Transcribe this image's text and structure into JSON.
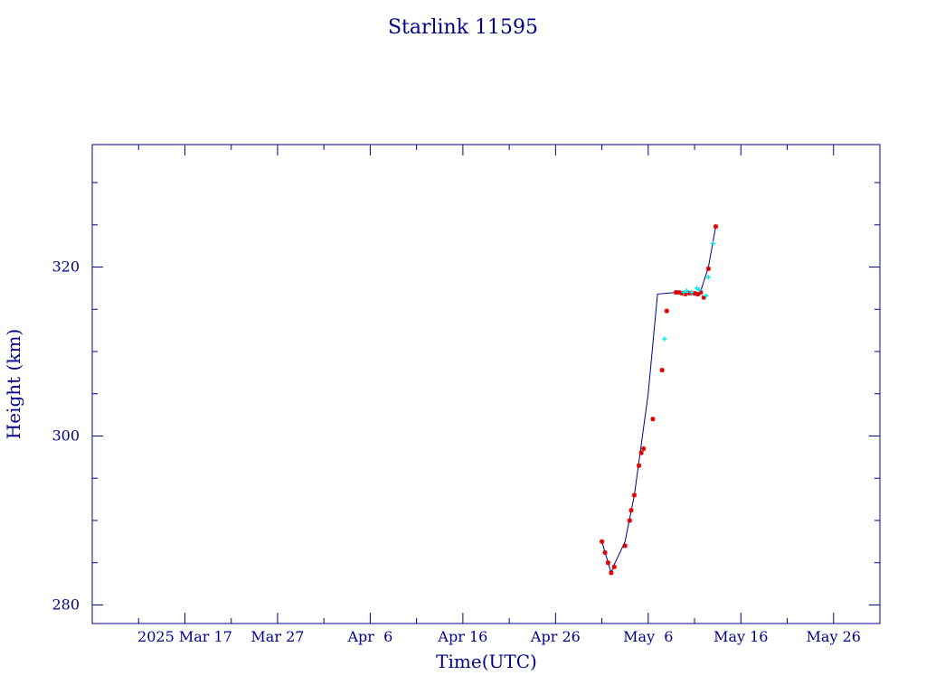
{
  "chart_data": {
    "type": "scatter",
    "title": "Starlink 11595",
    "xlabel": "Time(UTC)",
    "ylabel": "Height (km)",
    "x_axis_type": "date",
    "xlim": [
      "2025-03-07",
      "2025-05-31"
    ],
    "ylim": [
      277.8,
      334.5
    ],
    "x_major_ticks": [
      {
        "date": "2025-03-17",
        "label": "2025 Mar 17"
      },
      {
        "date": "2025-03-27",
        "label": "Mar 27"
      },
      {
        "date": "2025-04-06",
        "label": "Apr  6"
      },
      {
        "date": "2025-04-16",
        "label": "Apr 16"
      },
      {
        "date": "2025-04-26",
        "label": "Apr 26"
      },
      {
        "date": "2025-05-06",
        "label": "May  6"
      },
      {
        "date": "2025-05-16",
        "label": "May 16"
      },
      {
        "date": "2025-05-26",
        "label": "May 26"
      }
    ],
    "x_minor_ticks": [
      "2025-03-12",
      "2025-03-22",
      "2025-04-01",
      "2025-04-11",
      "2025-04-21",
      "2025-05-01",
      "2025-05-11",
      "2025-05-21"
    ],
    "y_major_ticks": [
      280,
      300,
      320
    ],
    "y_minor_ticks": [
      285,
      290,
      295,
      305,
      310,
      315,
      325,
      330
    ],
    "grid": false,
    "colors": {
      "axes": "#00008b",
      "line": "#00008b",
      "series_red": "#dd0000",
      "series_cyan": "#00e5ee"
    },
    "line": {
      "x": [
        "2025-05-01T00:00",
        "2025-05-02T00:00",
        "2025-05-02T08:00",
        "2025-05-03T12:00",
        "2025-05-04T12:00",
        "2025-05-06T00:00",
        "2025-05-07T00:00",
        "2025-05-09T00:00",
        "2025-05-10T12:00",
        "2025-05-11T12:00",
        "2025-05-12T12:00",
        "2025-05-13T07:00"
      ],
      "y": [
        287.5,
        283.8,
        284.8,
        287.5,
        293.0,
        305.0,
        316.8,
        317.0,
        316.8,
        316.6,
        320.0,
        324.8
      ]
    },
    "series": [
      {
        "marker": "*",
        "color": "#dd0000",
        "x": [
          "2025-05-01T00:00",
          "2025-05-01T08:00",
          "2025-05-01T16:00",
          "2025-05-02T00:00",
          "2025-05-02T08:00",
          "2025-05-03T12:00",
          "2025-05-04T00:00",
          "2025-05-04T04:00",
          "2025-05-04T12:00",
          "2025-05-05T00:00",
          "2025-05-05T06:00",
          "2025-05-05T12:00",
          "2025-05-06T12:00",
          "2025-05-07T12:00",
          "2025-05-08T00:00",
          "2025-05-09T00:00",
          "2025-05-09T08:00",
          "2025-05-09T16:00",
          "2025-05-10T00:00",
          "2025-05-10T12:00",
          "2025-05-11T00:00",
          "2025-05-11T08:00",
          "2025-05-11T16:00",
          "2025-05-12T00:00",
          "2025-05-12T12:00",
          "2025-05-13T07:00"
        ],
        "y": [
          287.5,
          286.2,
          285.0,
          283.8,
          284.5,
          287.0,
          290.0,
          291.2,
          293.0,
          296.5,
          298.0,
          298.5,
          302.0,
          307.8,
          314.8,
          317.0,
          317.0,
          316.9,
          316.8,
          316.9,
          316.9,
          316.8,
          317.0,
          316.4,
          319.8,
          324.8
        ]
      },
      {
        "marker": "+",
        "color": "#00e5ee",
        "x": [
          "2025-05-07T18:00",
          "2025-05-09T20:00",
          "2025-05-10T04:00",
          "2025-05-10T16:00",
          "2025-05-11T06:00",
          "2025-05-11T12:00",
          "2025-05-12T06:00",
          "2025-05-12T12:00",
          "2025-05-13T00:00"
        ],
        "y": [
          311.5,
          317.0,
          317.2,
          317.0,
          317.5,
          317.3,
          316.6,
          318.8,
          322.8
        ]
      }
    ]
  }
}
